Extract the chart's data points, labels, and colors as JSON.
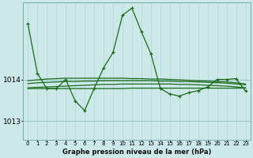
{
  "xlabel": "Graphe pression niveau de la mer (hPa)",
  "bg_color": "#cce8e8",
  "plot_bg_color": "#cce8e8",
  "grid_color_v": "#b0d8d8",
  "grid_color_h": "#90c0c0",
  "line_color": "#1a6b1a",
  "ylim": [
    1012.55,
    1015.85
  ],
  "yticks": [
    1013,
    1014
  ],
  "main_series": [
    1015.35,
    1014.15,
    1013.78,
    1013.78,
    1014.0,
    1013.48,
    1013.25,
    1013.78,
    1014.28,
    1014.65,
    1015.55,
    1015.72,
    1015.15,
    1014.62,
    1013.78,
    1013.65,
    1013.6,
    1013.68,
    1013.73,
    1013.82,
    1014.0,
    1014.0,
    1014.02,
    1013.72
  ],
  "smooth_lines": [
    [
      1013.78,
      1013.78,
      1013.78,
      1013.78,
      1013.78,
      1013.78,
      1013.78,
      1013.78,
      1013.78,
      1013.78,
      1013.78,
      1013.79,
      1013.79,
      1013.79,
      1013.79,
      1013.79,
      1013.79,
      1013.79,
      1013.79,
      1013.79,
      1013.79,
      1013.79,
      1013.79,
      1013.79
    ],
    [
      1013.8,
      1013.81,
      1013.82,
      1013.83,
      1013.84,
      1013.85,
      1013.86,
      1013.87,
      1013.88,
      1013.88,
      1013.89,
      1013.89,
      1013.89,
      1013.89,
      1013.89,
      1013.89,
      1013.88,
      1013.88,
      1013.87,
      1013.86,
      1013.85,
      1013.84,
      1013.82,
      1013.8
    ],
    [
      1013.9,
      1013.92,
      1013.93,
      1013.94,
      1013.95,
      1013.95,
      1013.96,
      1013.96,
      1013.97,
      1013.97,
      1013.97,
      1013.97,
      1013.97,
      1013.97,
      1013.96,
      1013.96,
      1013.95,
      1013.95,
      1013.94,
      1013.93,
      1013.92,
      1013.91,
      1013.89,
      1013.87
    ],
    [
      1013.97,
      1013.99,
      1014.01,
      1014.02,
      1014.03,
      1014.03,
      1014.03,
      1014.03,
      1014.03,
      1014.03,
      1014.03,
      1014.02,
      1014.02,
      1014.01,
      1014.01,
      1014.0,
      1013.99,
      1013.98,
      1013.97,
      1013.96,
      1013.95,
      1013.94,
      1013.92,
      1013.89
    ]
  ]
}
